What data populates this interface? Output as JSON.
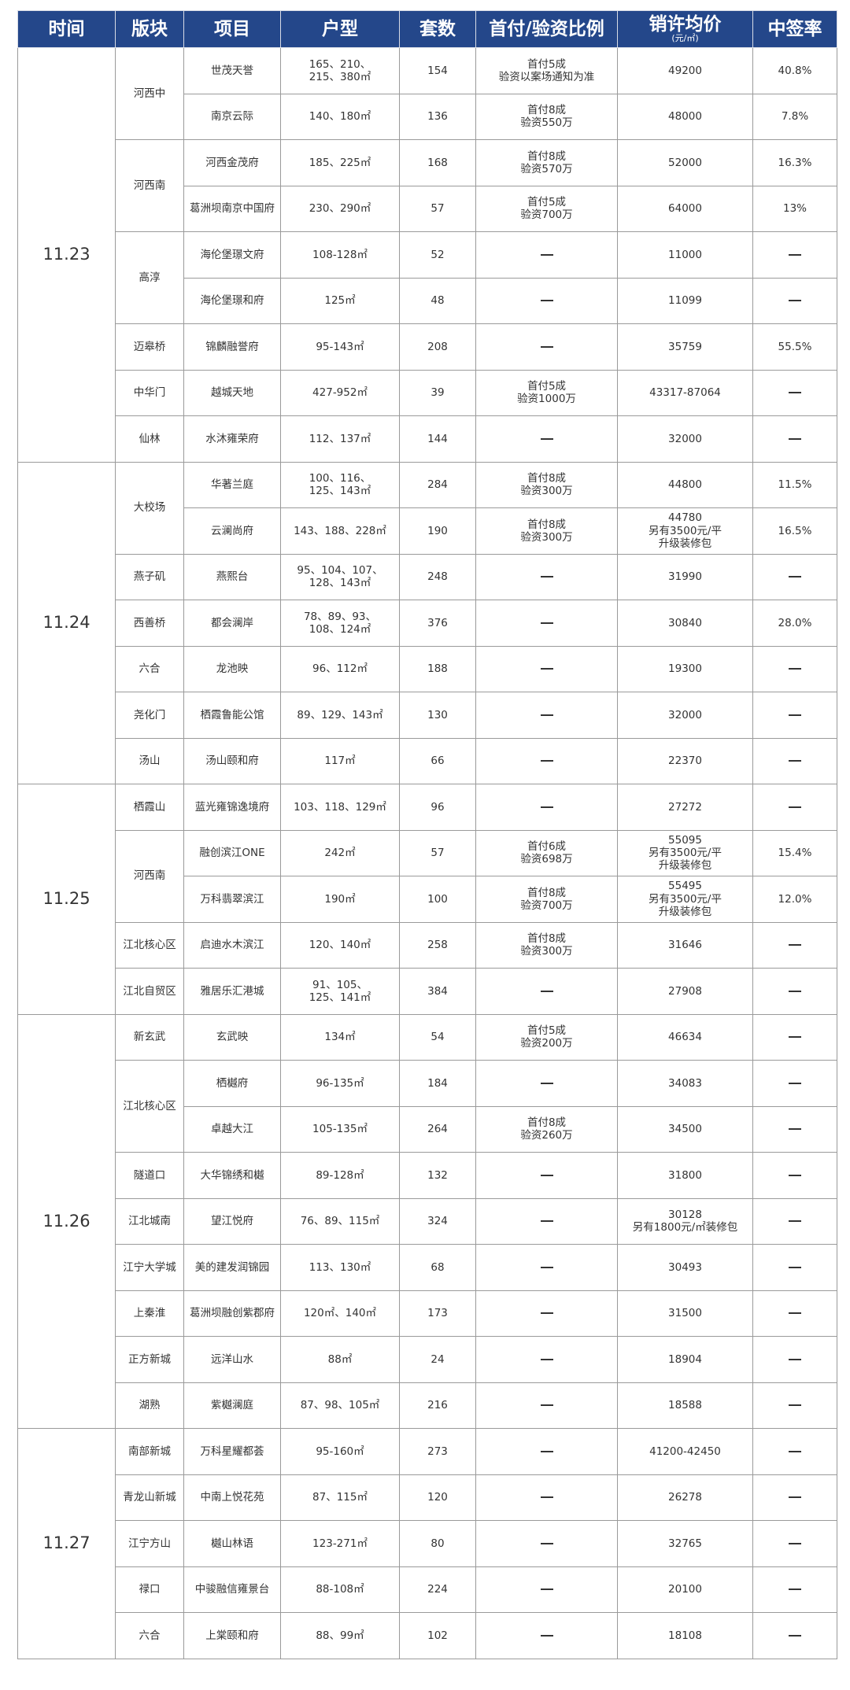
{
  "header": {
    "columns": [
      "时间",
      "版块",
      "项目",
      "户型",
      "套数",
      "首付/验资比例",
      "销许均价",
      "中签率"
    ],
    "price_unit": "(元/㎡)"
  },
  "colors": {
    "header_bg": "#24478a",
    "header_text": "#ffffff",
    "border": "#9a9a9a"
  },
  "groups": [
    {
      "date": "11.23",
      "blocks": [
        {
          "name": "河西中",
          "projects": [
            {
              "name": "世茂天誉",
              "types": "165、210、\n215、380㎡",
              "units": "154",
              "payment": "首付5成\n验资以案场通知为准",
              "price": "49200",
              "rate": "40.8%"
            },
            {
              "name": "南京云际",
              "types": "140、180㎡",
              "units": "136",
              "payment": "首付8成\n验资550万",
              "price": "48000",
              "rate": "7.8%"
            }
          ]
        },
        {
          "name": "河西南",
          "projects": [
            {
              "name": "河西金茂府",
              "types": "185、225㎡",
              "units": "168",
              "payment": "首付8成\n验资570万",
              "price": "52000",
              "rate": "16.3%"
            },
            {
              "name": "葛洲坝南京中国府",
              "types": "230、290㎡",
              "units": "57",
              "payment": "首付5成\n验资700万",
              "price": "64000",
              "rate": "13%"
            }
          ]
        },
        {
          "name": "高淳",
          "projects": [
            {
              "name": "海伦堡璟文府",
              "types": "108-128㎡",
              "units": "52",
              "payment": "—",
              "price": "11000",
              "rate": "—"
            },
            {
              "name": "海伦堡璟和府",
              "types": "125㎡",
              "units": "48",
              "payment": "—",
              "price": "11099",
              "rate": "—"
            }
          ]
        },
        {
          "name": "迈皋桥",
          "projects": [
            {
              "name": "锦麟融誉府",
              "types": "95-143㎡",
              "units": "208",
              "payment": "—",
              "price": "35759",
              "rate": "55.5%"
            }
          ]
        },
        {
          "name": "中华门",
          "projects": [
            {
              "name": "越城天地",
              "types": "427-952㎡",
              "units": "39",
              "payment": "首付5成\n验资1000万",
              "price": "43317-87064",
              "rate": "—"
            }
          ]
        },
        {
          "name": "仙林",
          "projects": [
            {
              "name": "水沐雍荣府",
              "types": "112、137㎡",
              "units": "144",
              "payment": "—",
              "price": "32000",
              "rate": "—"
            }
          ]
        }
      ]
    },
    {
      "date": "11.24",
      "blocks": [
        {
          "name": "大校场",
          "projects": [
            {
              "name": "华著兰庭",
              "types": "100、116、\n125、143㎡",
              "units": "284",
              "payment": "首付8成\n验资300万",
              "price": "44800",
              "rate": "11.5%"
            },
            {
              "name": "云澜尚府",
              "types": "143、188、228㎡",
              "units": "190",
              "payment": "首付8成\n验资300万",
              "price": "44780\n另有3500元/平\n升级装修包",
              "rate": "16.5%"
            }
          ]
        },
        {
          "name": "燕子矶",
          "projects": [
            {
              "name": "燕熙台",
              "types": "95、104、107、\n128、143㎡",
              "units": "248",
              "payment": "—",
              "price": "31990",
              "rate": "—"
            }
          ]
        },
        {
          "name": "西善桥",
          "projects": [
            {
              "name": "都会澜岸",
              "types": "78、89、93、\n108、124㎡",
              "units": "376",
              "payment": "—",
              "price": "30840",
              "rate": "28.0%"
            }
          ]
        },
        {
          "name": "六合",
          "projects": [
            {
              "name": "龙池映",
              "types": "96、112㎡",
              "units": "188",
              "payment": "—",
              "price": "19300",
              "rate": "—"
            }
          ]
        },
        {
          "name": "尧化门",
          "projects": [
            {
              "name": "栖霞鲁能公馆",
              "types": "89、129、143㎡",
              "units": "130",
              "payment": "—",
              "price": "32000",
              "rate": "—"
            }
          ]
        },
        {
          "name": "汤山",
          "projects": [
            {
              "name": "汤山颐和府",
              "types": "117㎡",
              "units": "66",
              "payment": "—",
              "price": "22370",
              "rate": "—"
            }
          ]
        }
      ]
    },
    {
      "date": "11.25",
      "blocks": [
        {
          "name": "栖霞山",
          "projects": [
            {
              "name": "蓝光雍锦逸境府",
              "types": "103、118、129㎡",
              "units": "96",
              "payment": "—",
              "price": "27272",
              "rate": "—"
            }
          ]
        },
        {
          "name": "河西南",
          "projects": [
            {
              "name": "融创滨江ONE",
              "types": "242㎡",
              "units": "57",
              "payment": "首付6成\n验资698万",
              "price": "55095\n另有3500元/平\n升级装修包",
              "rate": "15.4%"
            },
            {
              "name": "万科翡翠滨江",
              "types": "190㎡",
              "units": "100",
              "payment": "首付8成\n验资700万",
              "price": "55495\n另有3500元/平\n升级装修包",
              "rate": "12.0%"
            }
          ]
        },
        {
          "name": "江北核心区",
          "projects": [
            {
              "name": "启迪水木滨江",
              "types": "120、140㎡",
              "units": "258",
              "payment": "首付8成\n验资300万",
              "price": "31646",
              "rate": "—"
            }
          ]
        },
        {
          "name": "江北自贸区",
          "projects": [
            {
              "name": "雅居乐汇港城",
              "types": "91、105、\n125、141㎡",
              "units": "384",
              "payment": "—",
              "price": "27908",
              "rate": "—"
            }
          ]
        }
      ]
    },
    {
      "date": "11.26",
      "blocks": [
        {
          "name": "新玄武",
          "projects": [
            {
              "name": "玄武映",
              "types": "134㎡",
              "units": "54",
              "payment": "首付5成\n验资200万",
              "price": "46634",
              "rate": "—"
            }
          ]
        },
        {
          "name": "江北核心区",
          "projects": [
            {
              "name": "栖樾府",
              "types": "96-135㎡",
              "units": "184",
              "payment": "—",
              "price": "34083",
              "rate": "—"
            },
            {
              "name": "卓越大江",
              "types": "105-135㎡",
              "units": "264",
              "payment": "首付8成\n验资260万",
              "price": "34500",
              "rate": "—"
            }
          ]
        },
        {
          "name": "隧道口",
          "projects": [
            {
              "name": "大华锦绣和樾",
              "types": "89-128㎡",
              "units": "132",
              "payment": "—",
              "price": "31800",
              "rate": "—"
            }
          ]
        },
        {
          "name": "江北城南",
          "projects": [
            {
              "name": "望江悦府",
              "types": "76、89、115㎡",
              "units": "324",
              "payment": "—",
              "price": "30128\n另有1800元/㎡装修包",
              "rate": "—"
            }
          ]
        },
        {
          "name": "江宁大学城",
          "projects": [
            {
              "name": "美的建发润锦园",
              "types": "113、130㎡",
              "units": "68",
              "payment": "—",
              "price": "30493",
              "rate": "—"
            }
          ]
        },
        {
          "name": "上秦淮",
          "projects": [
            {
              "name": "葛洲坝融创紫郡府",
              "types": "120㎡、140㎡",
              "units": "173",
              "payment": "—",
              "price": "31500",
              "rate": "—"
            }
          ]
        },
        {
          "name": "正方新城",
          "projects": [
            {
              "name": "远洋山水",
              "types": "88㎡",
              "units": "24",
              "payment": "—",
              "price": "18904",
              "rate": "—"
            }
          ]
        },
        {
          "name": "湖熟",
          "projects": [
            {
              "name": "紫樾澜庭",
              "types": "87、98、105㎡",
              "units": "216",
              "payment": "—",
              "price": "18588",
              "rate": "—"
            }
          ]
        }
      ]
    },
    {
      "date": "11.27",
      "blocks": [
        {
          "name": "南部新城",
          "projects": [
            {
              "name": "万科星耀都荟",
              "types": "95-160㎡",
              "units": "273",
              "payment": "—",
              "price": "41200-42450",
              "rate": "—"
            }
          ]
        },
        {
          "name": "青龙山新城",
          "projects": [
            {
              "name": "中南上悦花苑",
              "types": "87、115㎡",
              "units": "120",
              "payment": "—",
              "price": "26278",
              "rate": "—"
            }
          ]
        },
        {
          "name": "江宁方山",
          "projects": [
            {
              "name": "樾山林语",
              "types": "123-271㎡",
              "units": "80",
              "payment": "—",
              "price": "32765",
              "rate": "—"
            }
          ]
        },
        {
          "name": "禄口",
          "projects": [
            {
              "name": "中骏融信雍景台",
              "types": "88-108㎡",
              "units": "224",
              "payment": "—",
              "price": "20100",
              "rate": "—"
            }
          ]
        },
        {
          "name": "六合",
          "projects": [
            {
              "name": "上棠颐和府",
              "types": "88、99㎡",
              "units": "102",
              "payment": "—",
              "price": "18108",
              "rate": "—"
            }
          ]
        }
      ]
    }
  ]
}
